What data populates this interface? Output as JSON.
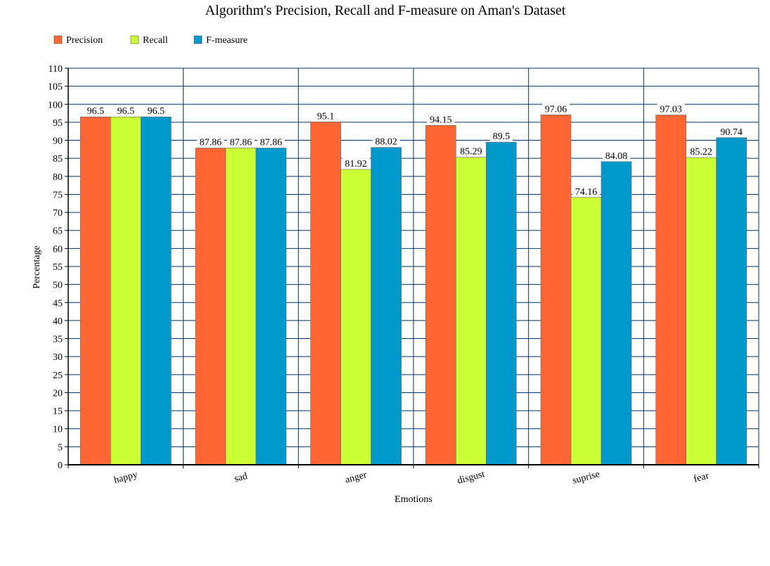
{
  "chart_data": {
    "type": "bar",
    "title": "Algorithm's Precision, Recall and F-measure on Aman's Dataset",
    "xlabel": "Emotions",
    "ylabel": "Percentage",
    "categories": [
      "happy",
      "sad",
      "anger",
      "disgust",
      "suprise",
      "fear"
    ],
    "series": [
      {
        "name": "Precision",
        "color": "#ff6633",
        "values": [
          96.5,
          87.86,
          95.1,
          94.15,
          97.06,
          97.03
        ]
      },
      {
        "name": "Recall",
        "color": "#ccff33",
        "values": [
          96.5,
          87.86,
          81.92,
          85.29,
          74.16,
          85.22
        ]
      },
      {
        "name": "F-measure",
        "color": "#0099cc",
        "values": [
          96.5,
          87.86,
          88.02,
          89.5,
          84.08,
          90.74
        ]
      }
    ],
    "ylim": [
      0,
      110
    ],
    "ytick_step": 5,
    "grid": true,
    "legend_position": "top-left",
    "gridline_color": "#003366"
  }
}
